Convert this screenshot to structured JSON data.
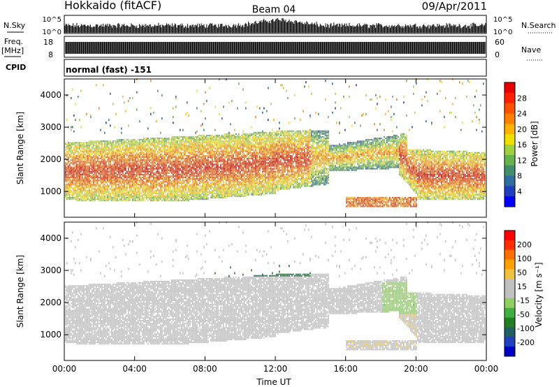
{
  "header": {
    "station": "Hokkaido (fitACF)",
    "beam": "Beam 04",
    "date": "09/Apr/2011"
  },
  "top_panels": {
    "nsky_label": "N.Sky",
    "nsearch_label": "N.Search",
    "freq_label": "Freq.",
    "freq_unit": "[MHz]",
    "nave_label": "Nave",
    "cpid_label": "CPID",
    "cpid_value": "normal (fast) -151",
    "noise_ticks": [
      "10^5",
      "10^0"
    ],
    "freq_ticks": [
      "18",
      "8"
    ],
    "nave_ticks": [
      "60",
      "0"
    ]
  },
  "chart_data": [
    {
      "type": "heatmap",
      "quantity": "power",
      "xlabel": "Time UT",
      "ylabel": "Slant Range [km]",
      "x_ticks": [
        "00:00",
        "04:00",
        "08:00",
        "12:00",
        "16:00",
        "20:00",
        "00:00"
      ],
      "xlim_hours": [
        0,
        24
      ],
      "y_ticks": [
        1000,
        2000,
        3000,
        4000
      ],
      "ylim": [
        200,
        4500
      ],
      "colorbar_label": "Power [dB]",
      "colorbar_ticks": [
        4,
        8,
        12,
        16,
        20,
        24,
        28
      ],
      "colorbar_range": [
        0,
        32
      ],
      "colors": [
        "#0000ff",
        "#1f3fbf",
        "#2f6f9f",
        "#3f8f6f",
        "#66b24c",
        "#9fd13f",
        "#f0e000",
        "#ffb000",
        "#ff8000",
        "#ff5000",
        "#ff2000",
        "#e80000"
      ]
    },
    {
      "type": "heatmap",
      "quantity": "velocity",
      "xlabel": "Time UT",
      "ylabel": "Slant Range [km]",
      "x_ticks": [
        "00:00",
        "04:00",
        "08:00",
        "12:00",
        "16:00",
        "20:00",
        "00:00"
      ],
      "xlim_hours": [
        0,
        24
      ],
      "y_ticks": [
        1000,
        2000,
        3000,
        4000
      ],
      "ylim": [
        200,
        4500
      ],
      "colorbar_label": "Velocity [m s⁻¹]",
      "colorbar_ticks": [
        "200",
        "100",
        "50",
        "15",
        "-15",
        "-50",
        "-100",
        "-200"
      ],
      "colorbar_range": [
        -300,
        300
      ],
      "colors": [
        "#0000c0",
        "#2040c0",
        "#206060",
        "#208020",
        "#40b040",
        "#90d060",
        "#c0c0c0",
        "#c0c0c0",
        "#f0c040",
        "#ffa000",
        "#ff7000",
        "#ff3000",
        "#ff0000"
      ]
    }
  ]
}
